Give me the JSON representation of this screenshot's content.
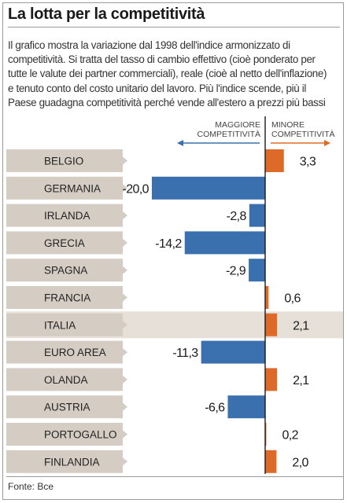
{
  "title": "La lotta per la competitività",
  "description_lines": [
    "Il grafico mostra la variazione dal 1998 dell'indice armonizzato di",
    "competitività. Si tratta del tasso di cambio effettivo (cioè ponderato per",
    "tutte le valute dei partner commerciali), reale (cioè al netto dell'inflazione)",
    "e tenuto conto del costo unitario del lavoro. Più l'indice scende, più il",
    "Paese guadagna competitività perché vende all'estero a prezzi più bassi"
  ],
  "legend": {
    "left": [
      "MAGGIORE",
      "COMPETITIVITÀ"
    ],
    "right": [
      "MINORE",
      "COMPETITIVITÀ"
    ]
  },
  "source": "Fonte: Bce",
  "colors": {
    "negative_bar": "#3a70ad",
    "positive_bar": "#de6a2a",
    "label_band": "#d5cdc4",
    "highlight_row": "#e6e0d9",
    "axis": "#1a1a1a",
    "arrow": "#3a70ad"
  },
  "chart_data": {
    "type": "bar",
    "orientation": "horizontal",
    "highlight": "ITALIA",
    "categories": [
      "BELGIO",
      "GERMANIA",
      "IRLANDA",
      "GRECIA",
      "SPAGNA",
      "FRANCIA",
      "ITALIA",
      "EURO AREA",
      "OLANDA",
      "AUSTRIA",
      "PORTOGALLO",
      "FINLANDIA"
    ],
    "flags": [
      "flag-belgium",
      "flag-germany",
      "flag-ireland",
      "flag-greece",
      "flag-spain",
      "flag-france",
      "flag-italy",
      "flag-eu",
      "flag-netherlands",
      "flag-austria",
      "flag-portugal",
      "flag-finland"
    ],
    "values": [
      3.3,
      -20.0,
      -2.8,
      -14.2,
      -2.9,
      0.6,
      2.1,
      -11.3,
      2.1,
      -6.6,
      0.2,
      2.0
    ],
    "labels": [
      "3,3",
      "-20,0",
      "-2,8",
      "-14,2",
      "-2,9",
      "0,6",
      "2,1",
      "-11,3",
      "2,1",
      "-6,6",
      "0,2",
      "2,0"
    ]
  }
}
